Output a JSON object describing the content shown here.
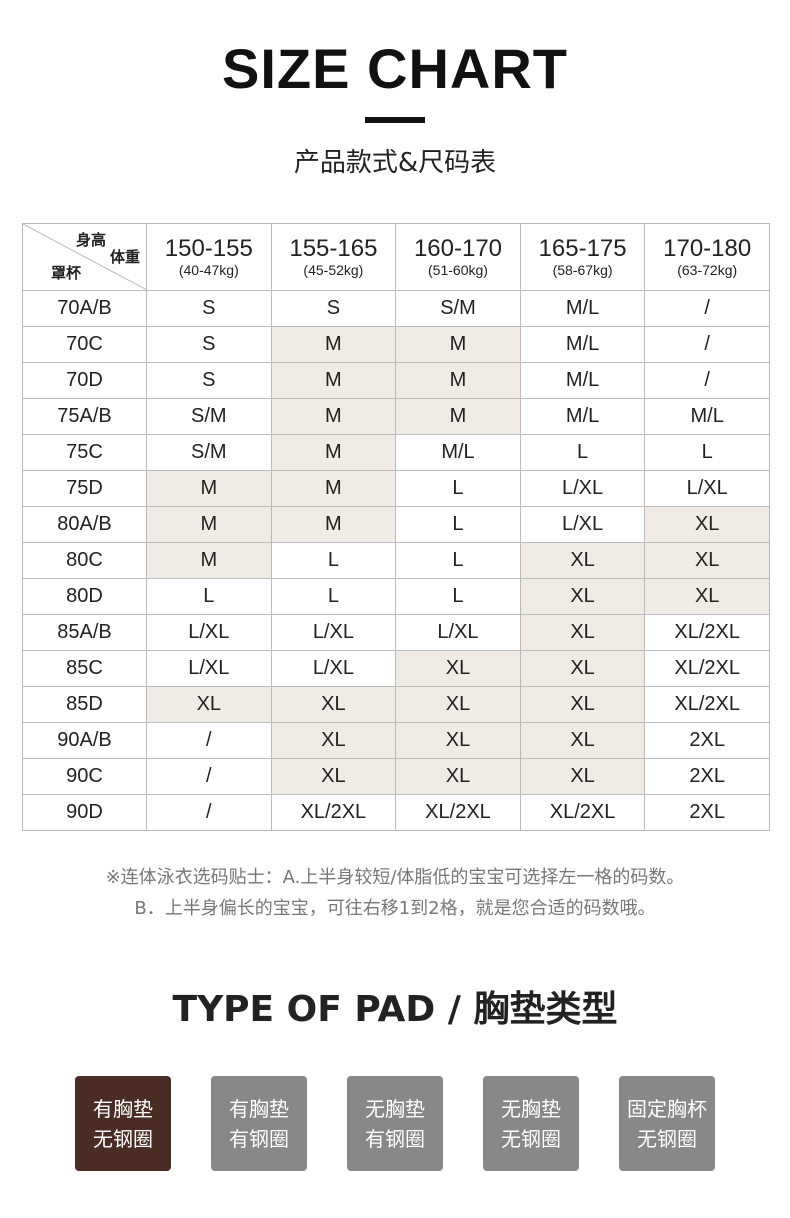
{
  "title": "SIZE CHART",
  "subtitle": "产品款式&尺码表",
  "table": {
    "corner": {
      "height": "身高",
      "weight": "体重",
      "cup": "罩杯"
    },
    "columns": [
      {
        "range": "150-155",
        "kg": "(40-47kg)"
      },
      {
        "range": "155-165",
        "kg": "(45-52kg)"
      },
      {
        "range": "160-170",
        "kg": "(51-60kg)"
      },
      {
        "range": "165-175",
        "kg": "(58-67kg)"
      },
      {
        "range": "170-180",
        "kg": "(63-72kg)"
      }
    ],
    "highlight_color": "#f0ebe4",
    "rows": [
      {
        "cup": "70A/B",
        "sizes": [
          "S",
          "S",
          "S/M",
          "M/L",
          "/"
        ],
        "highlight": [
          0,
          0,
          0,
          0,
          0
        ]
      },
      {
        "cup": "70C",
        "sizes": [
          "S",
          "M",
          "M",
          "M/L",
          "/"
        ],
        "highlight": [
          0,
          1,
          1,
          0,
          0
        ]
      },
      {
        "cup": "70D",
        "sizes": [
          "S",
          "M",
          "M",
          "M/L",
          "/"
        ],
        "highlight": [
          0,
          1,
          1,
          0,
          0
        ]
      },
      {
        "cup": "75A/B",
        "sizes": [
          "S/M",
          "M",
          "M",
          "M/L",
          "M/L"
        ],
        "highlight": [
          0,
          1,
          1,
          0,
          0
        ]
      },
      {
        "cup": "75C",
        "sizes": [
          "S/M",
          "M",
          "M/L",
          "L",
          "L"
        ],
        "highlight": [
          0,
          1,
          0,
          0,
          0
        ]
      },
      {
        "cup": "75D",
        "sizes": [
          "M",
          "M",
          "L",
          "L/XL",
          "L/XL"
        ],
        "highlight": [
          1,
          1,
          0,
          0,
          0
        ]
      },
      {
        "cup": "80A/B",
        "sizes": [
          "M",
          "M",
          "L",
          "L/XL",
          "XL"
        ],
        "highlight": [
          1,
          1,
          0,
          0,
          1
        ]
      },
      {
        "cup": "80C",
        "sizes": [
          "M",
          "L",
          "L",
          "XL",
          "XL"
        ],
        "highlight": [
          1,
          0,
          0,
          1,
          1
        ]
      },
      {
        "cup": "80D",
        "sizes": [
          "L",
          "L",
          "L",
          "XL",
          "XL"
        ],
        "highlight": [
          0,
          0,
          0,
          1,
          1
        ]
      },
      {
        "cup": "85A/B",
        "sizes": [
          "L/XL",
          "L/XL",
          "L/XL",
          "XL",
          "XL/2XL"
        ],
        "highlight": [
          0,
          0,
          0,
          1,
          0
        ]
      },
      {
        "cup": "85C",
        "sizes": [
          "L/XL",
          "L/XL",
          "XL",
          "XL",
          "XL/2XL"
        ],
        "highlight": [
          0,
          0,
          1,
          1,
          0
        ]
      },
      {
        "cup": "85D",
        "sizes": [
          "XL",
          "XL",
          "XL",
          "XL",
          "XL/2XL"
        ],
        "highlight": [
          1,
          1,
          1,
          1,
          0
        ]
      },
      {
        "cup": "90A/B",
        "sizes": [
          "/",
          "XL",
          "XL",
          "XL",
          "2XL"
        ],
        "highlight": [
          0,
          1,
          1,
          1,
          0
        ]
      },
      {
        "cup": "90C",
        "sizes": [
          "/",
          "XL",
          "XL",
          "XL",
          "2XL"
        ],
        "highlight": [
          0,
          1,
          1,
          1,
          0
        ]
      },
      {
        "cup": "90D",
        "sizes": [
          "/",
          "XL/2XL",
          "XL/2XL",
          "XL/2XL",
          "2XL"
        ],
        "highlight": [
          0,
          0,
          0,
          0,
          0
        ]
      }
    ]
  },
  "notes": [
    "※连体泳衣选码贴士：A.上半身较短/体脂低的宝宝可选择左一格的码数。",
    "B．上半身偏长的宝宝，可往右移1到2格，就是您合适的码数哦。"
  ],
  "pad_title": "TYPE OF PAD / 胸垫类型",
  "pads": [
    {
      "line1": "有胸垫",
      "line2": "无钢圈",
      "selected": true,
      "color": "#4a2c25"
    },
    {
      "line1": "有胸垫",
      "line2": "有钢圈",
      "selected": false,
      "color": "#888888"
    },
    {
      "line1": "无胸垫",
      "line2": "有钢圈",
      "selected": false,
      "color": "#888888"
    },
    {
      "line1": "无胸垫",
      "line2": "无钢圈",
      "selected": false,
      "color": "#888888"
    },
    {
      "line1": "固定胸杯",
      "line2": "无钢圈",
      "selected": false,
      "color": "#888888"
    }
  ]
}
